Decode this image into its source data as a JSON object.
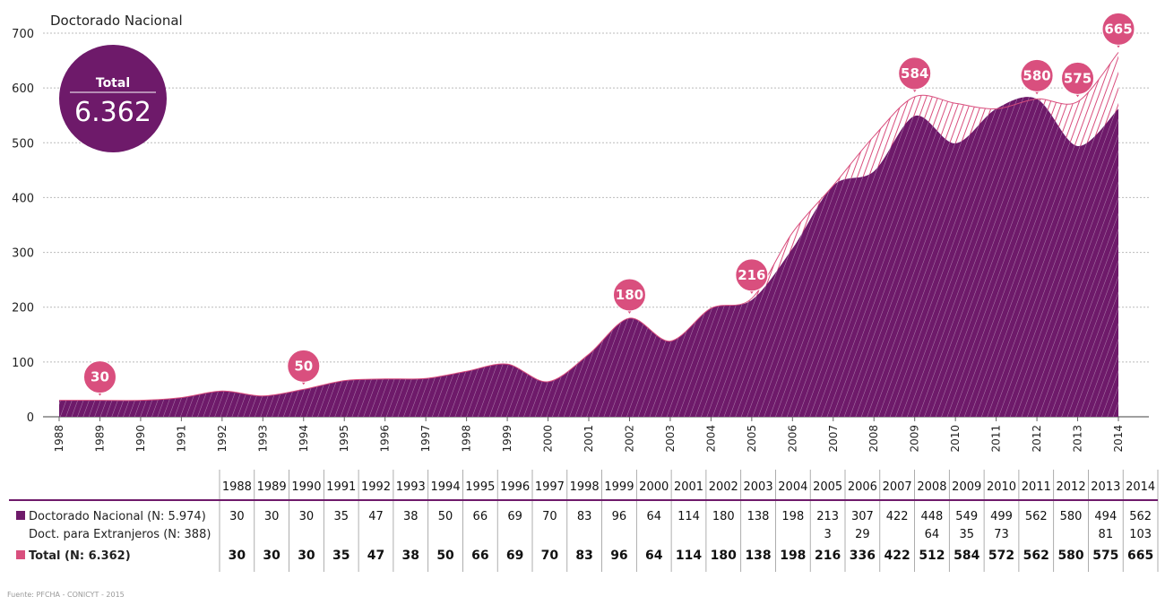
{
  "chart_data": {
    "type": "area",
    "title": "Doctorado Nacional",
    "ylim": [
      0,
      700
    ],
    "yticks": [
      "0",
      "100",
      "200",
      "300",
      "400",
      "500",
      "600",
      "700"
    ],
    "categories": [
      "1988",
      "1989",
      "1990",
      "1991",
      "1992",
      "1993",
      "1994",
      "1995",
      "1996",
      "1997",
      "1998",
      "1999",
      "2000",
      "2001",
      "2002",
      "2003",
      "2004",
      "2005",
      "2006",
      "2007",
      "2008",
      "2009",
      "2010",
      "2011",
      "2012",
      "2013",
      "2014"
    ],
    "series": [
      {
        "name": "Doctorado Nacional (N: 5.974)",
        "values": [
          30,
          30,
          30,
          35,
          47,
          38,
          50,
          66,
          69,
          70,
          83,
          96,
          64,
          114,
          180,
          138,
          198,
          213,
          307,
          422,
          448,
          549,
          499,
          562,
          580,
          494,
          562
        ],
        "color": "#6e1a6a"
      },
      {
        "name": "Doct. para Extranjeros (N: 388)",
        "values": [
          null,
          null,
          null,
          null,
          null,
          null,
          null,
          null,
          null,
          null,
          null,
          null,
          null,
          null,
          null,
          null,
          null,
          3,
          29,
          null,
          64,
          35,
          73,
          null,
          null,
          81,
          103
        ],
        "color": "#d94f7e"
      },
      {
        "name": "Total (N: 6.362)",
        "values": [
          30,
          30,
          30,
          35,
          47,
          38,
          50,
          66,
          69,
          70,
          83,
          96,
          64,
          114,
          180,
          138,
          198,
          216,
          336,
          422,
          512,
          584,
          572,
          562,
          580,
          575,
          665
        ],
        "color": "#d94f7e"
      }
    ],
    "callouts": [
      {
        "year": "1989",
        "label": "30"
      },
      {
        "year": "1994",
        "label": "50"
      },
      {
        "year": "2002",
        "label": "180"
      },
      {
        "year": "2005",
        "label": "216"
      },
      {
        "year": "2009",
        "label": "584"
      },
      {
        "year": "2012",
        "label": "580"
      },
      {
        "year": "2013",
        "label": "575"
      },
      {
        "year": "2014",
        "label": "665"
      }
    ],
    "grid": true,
    "table_bold_labels": [
      "30",
      "30",
      "30",
      "35",
      "47",
      "38",
      "50",
      "66",
      "69",
      "70",
      "83",
      "96",
      "64",
      "114",
      "180",
      "138",
      "198",
      "216",
      "336",
      "422",
      "512",
      "584",
      "572",
      "562",
      "580",
      "575",
      "665"
    ]
  },
  "badge": {
    "label": "Total",
    "value": "6.362"
  },
  "source": "Fuente: PFCHA - CONICYT - 2015",
  "colors": {
    "primary": "#6e1a6a",
    "accent": "#d94f7e",
    "grid": "#bbbbbb"
  }
}
